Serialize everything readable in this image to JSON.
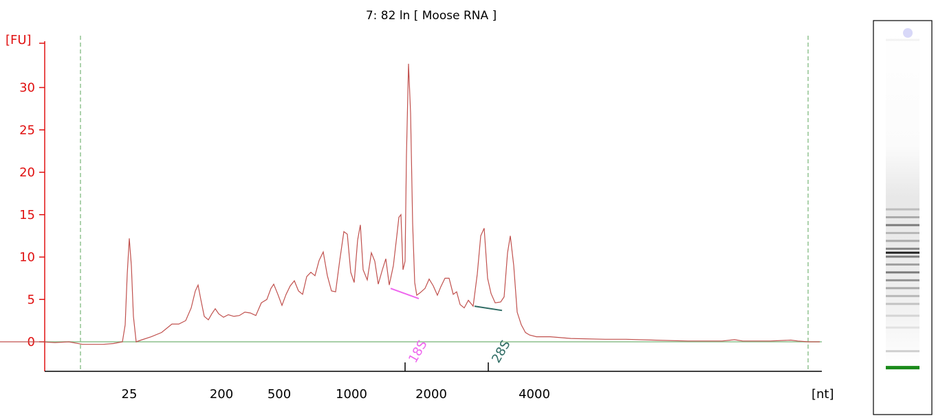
{
  "chart_data": {
    "type": "line",
    "title": "7: 82 ln  [ Moose RNA ]",
    "ylabel": "[FU]",
    "xlabel": "[nt]",
    "ylim": [
      -3.5,
      35
    ],
    "y_ticks": [
      0,
      5,
      10,
      15,
      20,
      25,
      30
    ],
    "x_ticks": [
      "25",
      "200",
      "500",
      "1000",
      "2000",
      "4000"
    ],
    "markers": [
      {
        "label": "18S",
        "color": "#ee66ee"
      },
      {
        "label": "28S",
        "color": "#2e6b63"
      }
    ],
    "colors": {
      "trace": "#c0504d",
      "axis_y": "#e01010",
      "baseline": "#8cbf8c",
      "window": "#5aa55a"
    },
    "series": [
      {
        "points": [
          [
            0,
            0
          ],
          [
            30,
            0
          ],
          [
            60,
            0
          ],
          [
            80,
            -0.1
          ],
          [
            100,
            0
          ],
          [
            120,
            -0.3
          ],
          [
            135,
            -0.3
          ],
          [
            150,
            -0.3
          ],
          [
            165,
            -0.2
          ],
          [
            178,
            0
          ],
          [
            182,
            2
          ],
          [
            185,
            8
          ],
          [
            188,
            12.2
          ],
          [
            191,
            9
          ],
          [
            194,
            3
          ],
          [
            198,
            0
          ],
          [
            205,
            0.2
          ],
          [
            220,
            0.6
          ],
          [
            235,
            1.1
          ],
          [
            250,
            2.1
          ],
          [
            260,
            2.1
          ],
          [
            270,
            2.5
          ],
          [
            278,
            4
          ],
          [
            284,
            6
          ],
          [
            288,
            6.7
          ],
          [
            292,
            5
          ],
          [
            297,
            3
          ],
          [
            303,
            2.6
          ],
          [
            308,
            3.3
          ],
          [
            313,
            3.9
          ],
          [
            318,
            3.3
          ],
          [
            325,
            2.9
          ],
          [
            332,
            3.2
          ],
          [
            340,
            3
          ],
          [
            348,
            3.1
          ],
          [
            356,
            3.5
          ],
          [
            364,
            3.4
          ],
          [
            372,
            3.1
          ],
          [
            380,
            4.6
          ],
          [
            388,
            5
          ],
          [
            394,
            6.3
          ],
          [
            398,
            6.8
          ],
          [
            404,
            5.6
          ],
          [
            410,
            4.3
          ],
          [
            416,
            5.6
          ],
          [
            422,
            6.6
          ],
          [
            428,
            7.2
          ],
          [
            434,
            6
          ],
          [
            440,
            5.6
          ],
          [
            446,
            7.7
          ],
          [
            452,
            8.2
          ],
          [
            458,
            7.8
          ],
          [
            464,
            9.6
          ],
          [
            470,
            10.6
          ],
          [
            476,
            7.8
          ],
          [
            482,
            6
          ],
          [
            488,
            5.9
          ],
          [
            494,
            9.6
          ],
          [
            500,
            13
          ],
          [
            505,
            12.7
          ],
          [
            510,
            8.2
          ],
          [
            515,
            7
          ],
          [
            520,
            12
          ],
          [
            524,
            13.8
          ],
          [
            528,
            8.5
          ],
          [
            534,
            7.3
          ],
          [
            540,
            10.5
          ],
          [
            545,
            9.5
          ],
          [
            550,
            6.8
          ],
          [
            556,
            8.5
          ],
          [
            561,
            9.8
          ],
          [
            566,
            6.7
          ],
          [
            572,
            9
          ],
          [
            577,
            12.5
          ],
          [
            580,
            14.7
          ],
          [
            583,
            15
          ],
          [
            586,
            8.5
          ],
          [
            589,
            9.5
          ],
          [
            591,
            22
          ],
          [
            594,
            32.8
          ],
          [
            597,
            27
          ],
          [
            600,
            14
          ],
          [
            603,
            7
          ],
          [
            606,
            5.5
          ],
          [
            611,
            5.8
          ],
          [
            618,
            6.3
          ],
          [
            624,
            7.4
          ],
          [
            630,
            6.6
          ],
          [
            636,
            5.5
          ],
          [
            641,
            6.5
          ],
          [
            647,
            7.5
          ],
          [
            653,
            7.5
          ],
          [
            659,
            5.6
          ],
          [
            664,
            5.9
          ],
          [
            669,
            4.4
          ],
          [
            675,
            4
          ],
          [
            681,
            4.9
          ],
          [
            688,
            4.2
          ],
          [
            694,
            8
          ],
          [
            699,
            12.5
          ],
          [
            704,
            13.4
          ],
          [
            709,
            7.5
          ],
          [
            714,
            5.7
          ],
          [
            720,
            4.6
          ],
          [
            728,
            4.7
          ],
          [
            733,
            5.3
          ],
          [
            738,
            10.5
          ],
          [
            742,
            12.5
          ],
          [
            747,
            9
          ],
          [
            752,
            3.5
          ],
          [
            758,
            2
          ],
          [
            764,
            1.1
          ],
          [
            770,
            0.8
          ],
          [
            780,
            0.6
          ],
          [
            800,
            0.6
          ],
          [
            830,
            0.4
          ],
          [
            880,
            0.3
          ],
          [
            910,
            0.3
          ],
          [
            950,
            0.2
          ],
          [
            1000,
            0.1
          ],
          [
            1050,
            0.1
          ],
          [
            1068,
            0.25
          ],
          [
            1080,
            0.1
          ],
          [
            1120,
            0.1
          ],
          [
            1150,
            0.2
          ],
          [
            1160,
            0.1
          ],
          [
            1175,
            0
          ],
          [
            1192,
            0
          ]
        ]
      }
    ]
  },
  "gel": {
    "bands": [
      {
        "pos": 0.05,
        "intensity": 0.05
      },
      {
        "pos": 0.48,
        "intensity": 0.28
      },
      {
        "pos": 0.5,
        "intensity": 0.35
      },
      {
        "pos": 0.52,
        "intensity": 0.55
      },
      {
        "pos": 0.54,
        "intensity": 0.3
      },
      {
        "pos": 0.56,
        "intensity": 0.35
      },
      {
        "pos": 0.58,
        "intensity": 0.5
      },
      {
        "pos": 0.59,
        "intensity": 0.92
      },
      {
        "pos": 0.6,
        "intensity": 0.55
      },
      {
        "pos": 0.62,
        "intensity": 0.4
      },
      {
        "pos": 0.64,
        "intensity": 0.55
      },
      {
        "pos": 0.66,
        "intensity": 0.45
      },
      {
        "pos": 0.68,
        "intensity": 0.35
      },
      {
        "pos": 0.7,
        "intensity": 0.3
      },
      {
        "pos": 0.72,
        "intensity": 0.25
      },
      {
        "pos": 0.75,
        "intensity": 0.18
      },
      {
        "pos": 0.78,
        "intensity": 0.12
      },
      {
        "pos": 0.84,
        "intensity": 0.2
      },
      {
        "pos": 0.88,
        "intensity": 1.0,
        "color": "#1a8a1a"
      }
    ]
  }
}
